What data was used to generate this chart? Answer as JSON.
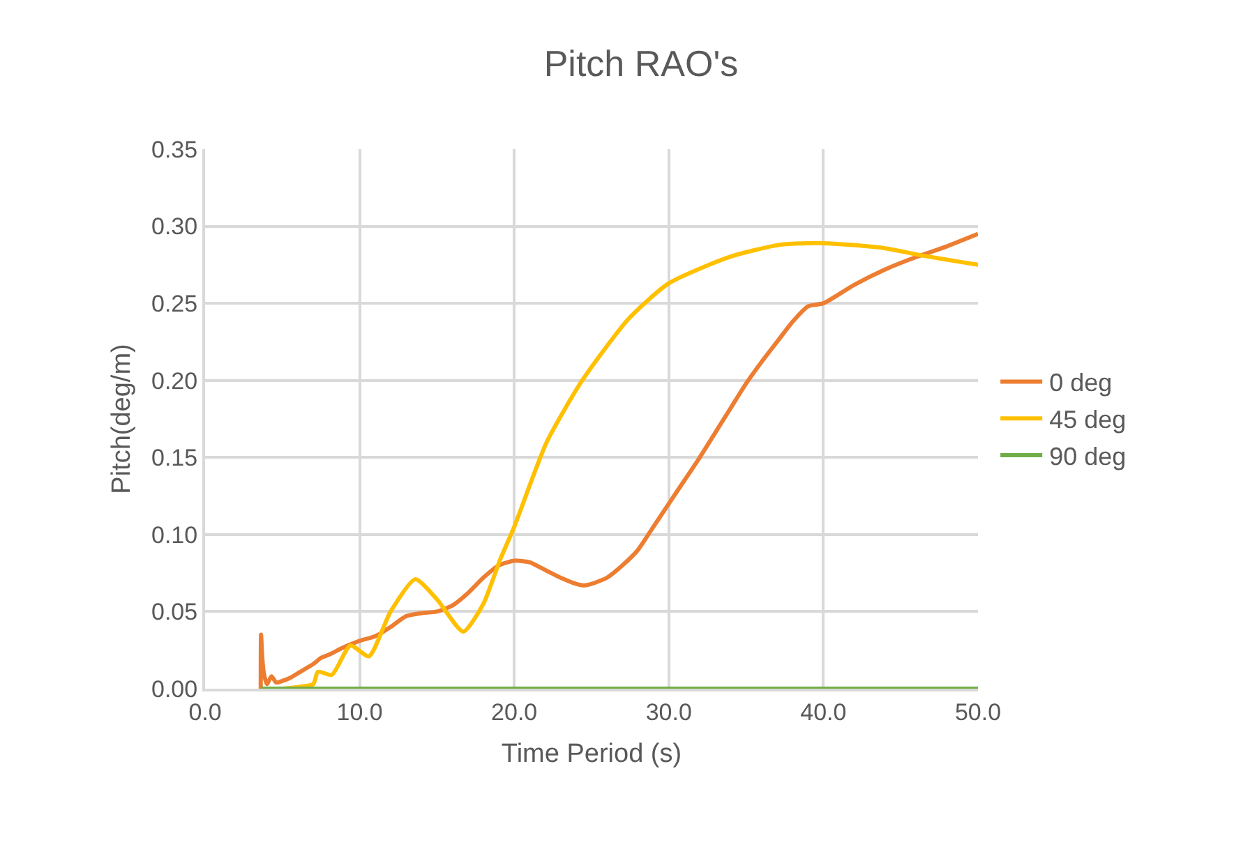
{
  "chart_data": {
    "type": "line",
    "title": "Pitch RAO's",
    "xlabel": "Time Period (s)",
    "ylabel": "Pitch(deg/m)",
    "xlim": [
      0,
      50
    ],
    "xticks": [
      {
        "value": 0,
        "label": "0.0"
      },
      {
        "value": 10,
        "label": "10.0"
      },
      {
        "value": 20,
        "label": "20.0"
      },
      {
        "value": 30,
        "label": "30.0"
      },
      {
        "value": 40,
        "label": "40.0"
      },
      {
        "value": 50,
        "label": "50.0"
      }
    ],
    "ylim": [
      0,
      0.35
    ],
    "yticks": [
      {
        "value": 0,
        "label": "0.00"
      },
      {
        "value": 0.05,
        "label": "0.05"
      },
      {
        "value": 0.1,
        "label": "0.10"
      },
      {
        "value": 0.15,
        "label": "0.15"
      },
      {
        "value": 0.2,
        "label": "0.20"
      },
      {
        "value": 0.25,
        "label": "0.25"
      },
      {
        "value": 0.3,
        "label": "0.30"
      },
      {
        "value": 0.35,
        "label": "0.35"
      }
    ],
    "grid": true,
    "legend": "right",
    "marker": "none",
    "line_style": "solid",
    "series": [
      {
        "name": "0 deg",
        "color": "#ed7d31",
        "x": [
          3.6,
          3.62,
          3.7,
          3.8,
          4.0,
          4.3,
          4.6,
          5.0,
          5.5,
          6.0,
          6.5,
          7.0,
          7.5,
          8.0,
          9,
          10,
          11,
          12,
          13,
          14,
          15,
          16,
          17,
          18,
          19,
          20,
          21,
          22,
          23,
          24,
          24.5,
          25,
          26,
          27,
          28,
          29,
          30,
          31,
          32,
          33,
          34,
          35,
          36,
          37,
          38,
          39,
          40,
          42,
          44,
          46,
          48,
          50
        ],
        "values": [
          0.0,
          0.035,
          0.02,
          0.01,
          0.003,
          0.008,
          0.004,
          0.005,
          0.007,
          0.01,
          0.013,
          0.016,
          0.02,
          0.022,
          0.027,
          0.031,
          0.034,
          0.04,
          0.047,
          0.049,
          0.05,
          0.054,
          0.062,
          0.072,
          0.08,
          0.083,
          0.082,
          0.077,
          0.072,
          0.068,
          0.067,
          0.068,
          0.072,
          0.08,
          0.09,
          0.105,
          0.12,
          0.135,
          0.15,
          0.166,
          0.182,
          0.198,
          0.212,
          0.225,
          0.238,
          0.248,
          0.25,
          0.262,
          0.272,
          0.28,
          0.287,
          0.295
        ]
      },
      {
        "name": "45 deg",
        "color": "#ffc000",
        "x": [
          3.6,
          5,
          6,
          7,
          7.3,
          8.2,
          9.4,
          10.6,
          12,
          13.6,
          15,
          16.7,
          18,
          19.1,
          20,
          22.1,
          24.4,
          27.4,
          30,
          33.9,
          37.2,
          40,
          43.8,
          46.4,
          50
        ],
        "values": [
          0.0,
          0.0,
          0.001,
          0.003,
          0.011,
          0.009,
          0.028,
          0.021,
          0.05,
          0.071,
          0.058,
          0.037,
          0.055,
          0.084,
          0.105,
          0.16,
          0.2,
          0.24,
          0.263,
          0.28,
          0.288,
          0.289,
          0.286,
          0.281,
          0.275
        ]
      },
      {
        "name": "90 deg",
        "color": "#70ad47",
        "x": [
          3.6,
          50
        ],
        "values": [
          0,
          0
        ]
      }
    ]
  }
}
